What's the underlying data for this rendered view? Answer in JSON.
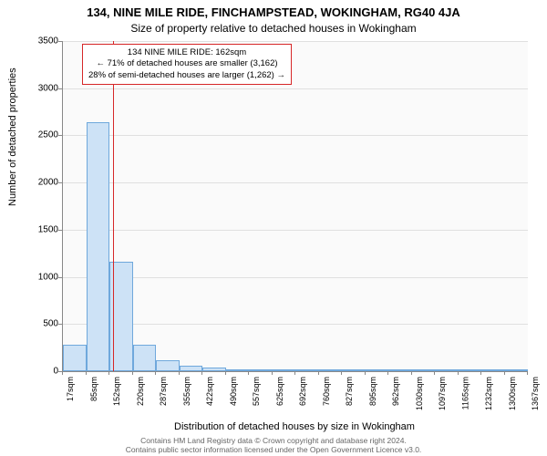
{
  "title_main": "134, NINE MILE RIDE, FINCHAMPSTEAD, WOKINGHAM, RG40 4JA",
  "title_sub": "Size of property relative to detached houses in Wokingham",
  "ylabel": "Number of detached properties",
  "xlabel": "Distribution of detached houses by size in Wokingham",
  "chart": {
    "type": "histogram",
    "ylim": [
      0,
      3500
    ],
    "yticks": [
      0,
      500,
      1000,
      1500,
      2000,
      2500,
      3000,
      3500
    ],
    "xticks": [
      "17sqm",
      "85sqm",
      "152sqm",
      "220sqm",
      "287sqm",
      "355sqm",
      "422sqm",
      "490sqm",
      "557sqm",
      "625sqm",
      "692sqm",
      "760sqm",
      "827sqm",
      "895sqm",
      "962sqm",
      "1030sqm",
      "1097sqm",
      "1165sqm",
      "1232sqm",
      "1300sqm",
      "1367sqm"
    ],
    "x_min_sqm": 17,
    "x_max_sqm": 1367,
    "bar_interval_sqm": 67.5,
    "bars": [
      280,
      2640,
      1160,
      280,
      120,
      60,
      35,
      20,
      15,
      10,
      8,
      6,
      5,
      4,
      3,
      2,
      2,
      2,
      1,
      1
    ],
    "bar_fill": "#cde2f6",
    "bar_stroke": "#6fa8dc",
    "grid_color": "#e0e0e0",
    "axis_color": "#888888",
    "background": "#fafafa",
    "marker_sqm": 162,
    "marker_color": "#d62728"
  },
  "annotation": {
    "line1": "134 NINE MILE RIDE: 162sqm",
    "line2": "← 71% of detached houses are smaller (3,162)",
    "line3": "28% of semi-detached houses are larger (1,262) →"
  },
  "footer": {
    "line1": "Contains HM Land Registry data © Crown copyright and database right 2024.",
    "line2": "Contains public sector information licensed under the Open Government Licence v3.0."
  }
}
